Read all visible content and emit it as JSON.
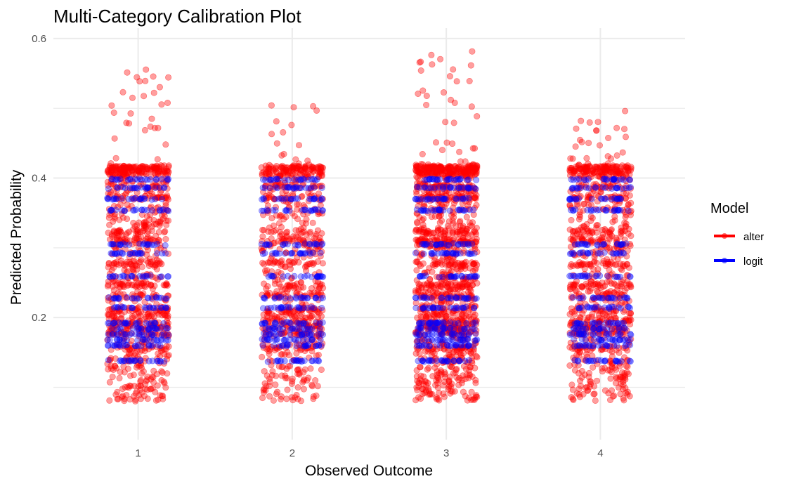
{
  "chart_data": {
    "type": "scatter",
    "title": "Multi-Category Calibration Plot",
    "xlabel": "Observed Outcome",
    "ylabel": "Predicted Probability",
    "x_ticks": [
      "1",
      "2",
      "3",
      "4"
    ],
    "y_ticks": [
      "0.2",
      "0.4",
      "0.6"
    ],
    "x_range": [
      0.45,
      4.55
    ],
    "ylim": [
      0.025,
      0.615
    ],
    "jitter_width": 0.2,
    "grid": true,
    "legend": {
      "title": "Model",
      "position": "right",
      "entries": [
        "alter",
        "logit"
      ]
    },
    "series": [
      {
        "name": "alter",
        "color": "#ff0000",
        "description": "continuous spread of predictions, densest at each predicted level",
        "y_range_by_category": [
          [
            0.055,
            0.568
          ],
          [
            0.066,
            0.514
          ],
          [
            0.047,
            0.582
          ],
          [
            0.068,
            0.498
          ]
        ],
        "points_per_category": [
          950,
          780,
          1300,
          900
        ]
      },
      {
        "name": "logit",
        "color": "#0000ff",
        "levels": [
          0.138,
          0.16,
          0.168,
          0.176,
          0.184,
          0.192,
          0.214,
          0.228,
          0.259,
          0.292,
          0.305,
          0.354,
          0.37,
          0.386,
          0.398
        ],
        "points_per_level": [
          22,
          22,
          26,
          22
        ]
      }
    ]
  }
}
